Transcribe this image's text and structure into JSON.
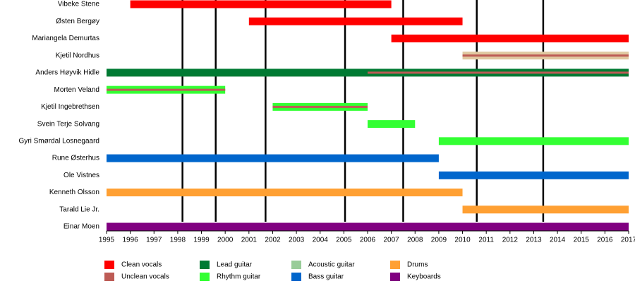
{
  "chart_data": {
    "type": "timeline",
    "categories": [
      "Vibeke Stene",
      "Østen Bergøy",
      "Mariangela Demurtas",
      "Kjetil Nordhus",
      "Anders Høyvik Hidle",
      "Morten Veland",
      "Kjetil Ingebrethsen",
      "Svein Terje Solvang",
      "Gyri Smørdal Losnegaard",
      "Rune Østerhus",
      "Ole Vistnes",
      "Kenneth Olsson",
      "Tarald Lie Jr.",
      "Einar Moen"
    ],
    "bars": [
      {
        "start": 1996,
        "end": 2007,
        "color": "#ff0000"
      },
      {
        "start": 2001,
        "end": 2010,
        "color": "#ff0000"
      },
      {
        "start": 2007,
        "end": 2017,
        "color": "#ff0000"
      },
      {
        "start": 2010,
        "end": 2017,
        "color": "#e0c8a0",
        "stripe": {
          "start": 2010,
          "end": 2017,
          "color": "#bd5b55"
        }
      },
      {
        "start": 1995,
        "end": 2017,
        "color": "#007a33",
        "stripe": {
          "start": 2006,
          "end": 2017,
          "color": "#bd5b55"
        }
      },
      {
        "start": 1995,
        "end": 2000,
        "color": "#33ff33",
        "stripe": {
          "start": 1995,
          "end": 2000,
          "color": "#bd5b55"
        }
      },
      {
        "start": 2002,
        "end": 2006,
        "color": "#33ff33",
        "stripe": {
          "start": 2002,
          "end": 2006,
          "color": "#bd5b55"
        }
      },
      {
        "start": 2006,
        "end": 2008,
        "color": "#33ff33"
      },
      {
        "start": 2009,
        "end": 2017,
        "color": "#33ff33"
      },
      {
        "start": 1995,
        "end": 2009,
        "color": "#0066cc"
      },
      {
        "start": 2009,
        "end": 2017,
        "color": "#0066cc"
      },
      {
        "start": 1995,
        "end": 2010,
        "color": "#ffa033"
      },
      {
        "start": 2010,
        "end": 2017,
        "color": "#ffa033"
      },
      {
        "start": 1995,
        "end": 2017,
        "color": "#800080"
      }
    ],
    "markers": [
      1998.2,
      1999.6,
      2001.7,
      2005.05,
      2007.5,
      2010.6,
      2013.4
    ],
    "xlim": [
      1995,
      2017
    ],
    "xticks": [
      1995,
      1996,
      1997,
      1998,
      1999,
      2000,
      2001,
      2002,
      2003,
      2004,
      2005,
      2006,
      2007,
      2008,
      2009,
      2010,
      2011,
      2012,
      2013,
      2014,
      2015,
      2016,
      2017
    ],
    "legend": [
      {
        "name": "Clean vocals",
        "color": "#ff0000"
      },
      {
        "name": "Unclean vocals",
        "color": "#bd5b55"
      },
      {
        "name": "Lead guitar",
        "color": "#007a33"
      },
      {
        "name": "Rhythm guitar",
        "color": "#33ff33"
      },
      {
        "name": "Acoustic guitar",
        "color": "#99cc99"
      },
      {
        "name": "Bass guitar",
        "color": "#0066cc"
      },
      {
        "name": "Drums",
        "color": "#ffa033"
      },
      {
        "name": "Keyboards",
        "color": "#800080"
      }
    ]
  }
}
